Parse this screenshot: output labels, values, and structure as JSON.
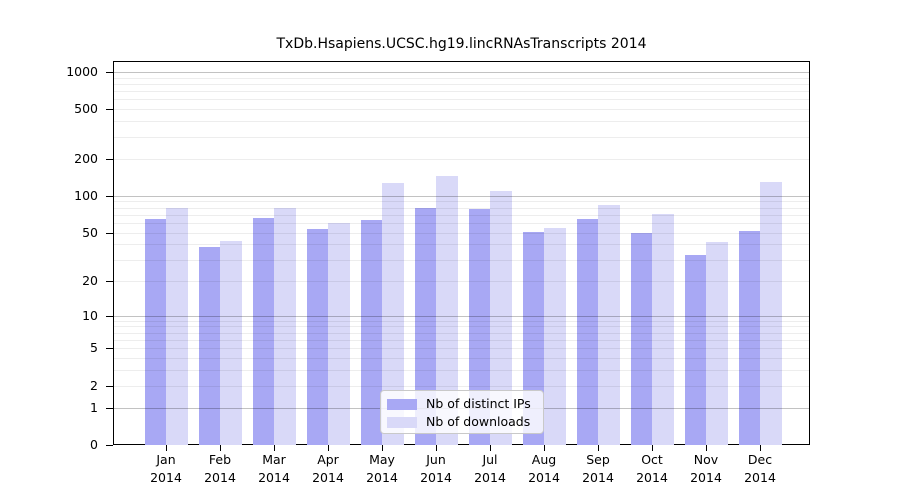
{
  "title": "TxDb.Hsapiens.UCSC.hg19.lincRNAsTranscripts 2014",
  "background_color": "#ffffff",
  "chart_data": {
    "type": "bar",
    "scale": "log1p",
    "grid": "on",
    "legend_position": "bottom-center",
    "title": "TxDb.Hsapiens.UCSC.hg19.lincRNAsTranscripts 2014",
    "xlabel": "",
    "ylabel": "",
    "year": "2014",
    "categories": [
      "Jan",
      "Feb",
      "Mar",
      "Apr",
      "May",
      "Jun",
      "Jul",
      "Aug",
      "Sep",
      "Oct",
      "Nov",
      "Dec"
    ],
    "series": [
      {
        "name": "Nb of distinct IPs",
        "color": "#a8a8f4",
        "values": [
          65,
          38,
          66,
          54,
          64,
          79,
          78,
          51,
          65,
          50,
          33,
          52
        ]
      },
      {
        "name": "Nb of downloads",
        "color": "#d9d9f8",
        "values": [
          80,
          43,
          79,
          60,
          126,
          146,
          110,
          55,
          84,
          71,
          42,
          130
        ]
      }
    ],
    "y_ticks": [
      1000,
      500,
      200,
      100,
      50,
      20,
      10,
      5,
      2,
      1,
      0
    ],
    "major_gridlines": [
      1,
      10,
      100,
      1000
    ],
    "minor_gridlines": [
      2,
      3,
      4,
      5,
      6,
      7,
      8,
      9,
      20,
      30,
      40,
      50,
      60,
      70,
      80,
      90,
      200,
      300,
      400,
      500,
      600,
      700,
      800,
      900
    ],
    "ylim": [
      0,
      1000
    ]
  }
}
